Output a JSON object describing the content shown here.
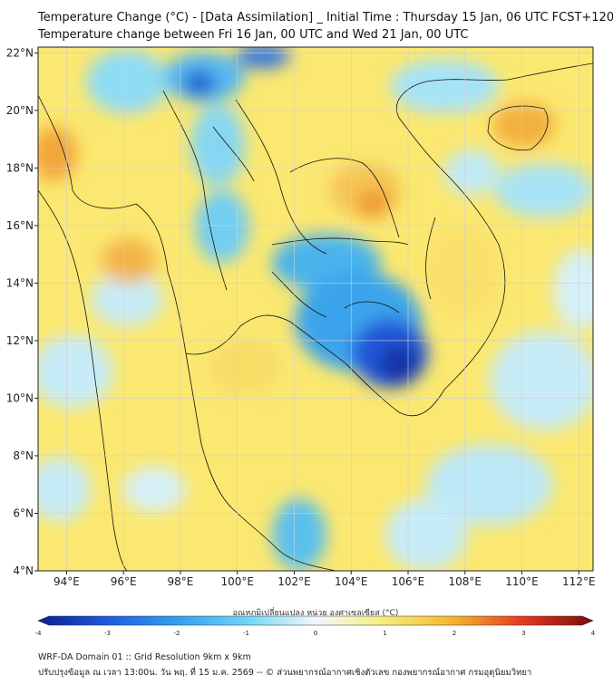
{
  "header": {
    "title_line1": "Temperature Change (°C) - [Data Assimilation] _ Initial Time : Thursday 15 Jan, 06 UTC FCST+120",
    "title_line2": "Temperature change between Fri 16 Jan, 00 UTC and Wed 21 Jan, 00 UTC"
  },
  "map": {
    "lon_ticks": [
      "94°E",
      "96°E",
      "98°E",
      "100°E",
      "102°E",
      "104°E",
      "106°E",
      "108°E",
      "110°E",
      "112°E"
    ],
    "lat_ticks": [
      "22°N",
      "20°N",
      "18°N",
      "16°N",
      "14°N",
      "12°N",
      "10°N",
      "8°N",
      "6°N",
      "4°N"
    ],
    "lon_range": [
      93.0,
      112.5
    ],
    "lat_range": [
      4.0,
      22.2
    ],
    "background_color": "#fbe870"
  },
  "colorbar": {
    "label": "อุณหภูมิเปลี่ยนแปลง หน่วย องศาเซลเซียส (°C)",
    "tick_labels": [
      "-4",
      "-3",
      "-2",
      "-1",
      "0",
      "1",
      "2",
      "3",
      "4"
    ],
    "min": -4,
    "max": 4,
    "colors": [
      "#0a1f8f",
      "#1e5be0",
      "#2fa0f0",
      "#6fd5f5",
      "#f2f8fb",
      "#f6ec7a",
      "#f5b42a",
      "#e5371f",
      "#7a0c0c"
    ]
  },
  "footer": {
    "line1": "WRF-DA Domain 01 :: Grid Resolution 9km x 9km",
    "line2": "ปรับปรุงข้อมูล ณ เวลา 13:00น. วัน พฤ. ที่ 15 ม.ค. 2569 -- © ส่วนพยากรณ์อากาศเชิงตัวเลข กองพยากรณ์อากาศ กรมอุตุนิยมวิทยา"
  }
}
